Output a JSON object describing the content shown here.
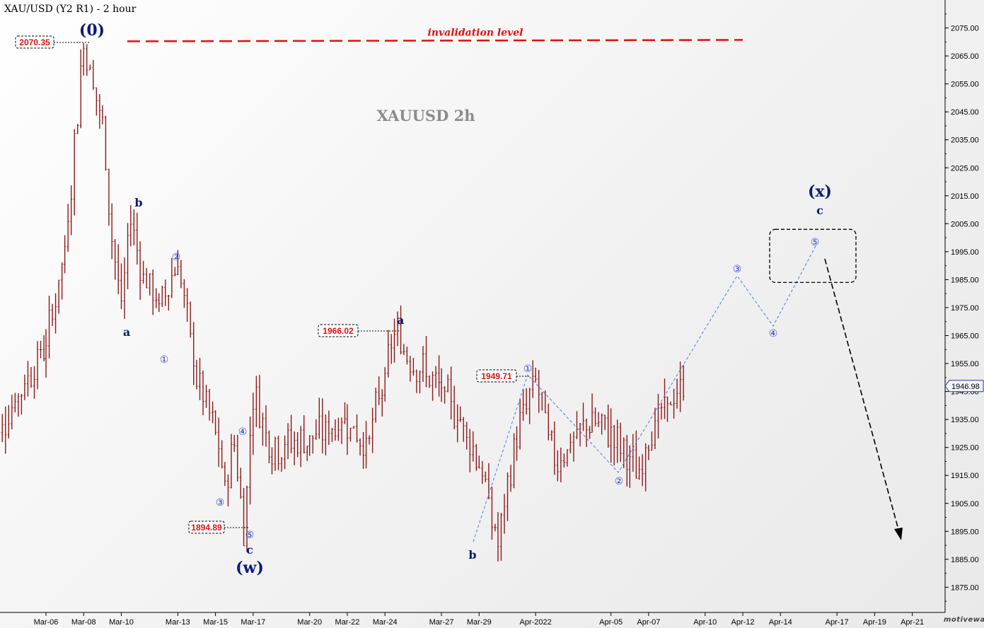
{
  "window": {
    "title": "XAU/USD (Y2 R1) - 2 hour",
    "watermark": "motivewave.com",
    "subtitle": "XAUUSD 2h",
    "invalidation_label": "invalidation level",
    "current_price_tag": "1946.98"
  },
  "colors": {
    "candle": "#8b1a1a",
    "wave_label": "#0b1a7a",
    "projection": "#4a7de0",
    "invalidation": "#e01010",
    "price_box_text": "#e01010",
    "axis": "#000000"
  },
  "chart_data": {
    "type": "ohlc_bar",
    "title": "XAU/USD (Y2 R1) - 2 hour",
    "ylim": [
      1866,
      2085
    ],
    "y_ticks": [
      "1875.00",
      "1885.00",
      "1895.00",
      "1905.00",
      "1915.00",
      "1925.00",
      "1935.00",
      "1945.00",
      "1955.00",
      "1965.00",
      "1975.00",
      "1985.00",
      "1995.00",
      "2005.00",
      "2015.00",
      "2025.00",
      "2035.00",
      "2045.00",
      "2055.00",
      "2065.00",
      "2075.00"
    ],
    "x_ticks": [
      "Mar-06",
      "Mar-08",
      "Mar-10",
      "Mar-13",
      "Mar-15",
      "Mar-17",
      "Mar-20",
      "Mar-22",
      "Mar-24",
      "Mar-27",
      "Mar-29",
      "Apr-2022",
      "Apr-05",
      "Apr-07",
      "Apr-10",
      "Apr-12",
      "Apr-14",
      "Apr-17",
      "Apr-19",
      "Apr-21"
    ],
    "price_path": [
      [
        "Mar-03",
        1925
      ],
      [
        "Mar-06",
        1962
      ],
      [
        "Mar-07",
        1995
      ],
      [
        "Mar-08",
        2070.35
      ],
      [
        "Mar-09",
        2040
      ],
      [
        "Mar-09",
        2000
      ],
      [
        "Mar-10",
        1975
      ],
      [
        "Mar-10",
        2008
      ],
      [
        "Mar-11",
        1990
      ],
      [
        "Mar-12",
        1975
      ],
      [
        "Mar-13",
        1992
      ],
      [
        "Mar-13",
        1970
      ],
      [
        "Mar-14",
        1950
      ],
      [
        "Mar-15",
        1930
      ],
      [
        "Mar-15",
        1910
      ],
      [
        "Mar-16",
        1928
      ],
      [
        "Mar-16",
        1894.89
      ],
      [
        "Mar-17",
        1945
      ],
      [
        "Mar-18",
        1925
      ],
      [
        "Mar-20",
        1928
      ],
      [
        "Mar-22",
        1935
      ],
      [
        "Mar-23",
        1925
      ],
      [
        "Mar-24",
        1950
      ],
      [
        "Mar-24",
        1966.02
      ],
      [
        "Mar-25",
        1960
      ],
      [
        "Mar-27",
        1945
      ],
      [
        "Mar-28",
        1935
      ],
      [
        "Mar-29",
        1920
      ],
      [
        "Mar-30",
        1890
      ],
      [
        "Mar-31",
        1930
      ],
      [
        "Apr-01",
        1949.71
      ],
      [
        "Apr-02",
        1920
      ],
      [
        "Apr-04",
        1935
      ],
      [
        "Apr-05",
        1930
      ],
      [
        "Apr-06",
        1920
      ],
      [
        "Apr-06",
        1915
      ],
      [
        "Apr-07",
        1930
      ],
      [
        "Apr-08",
        1940
      ],
      [
        "Apr-09",
        1946.98
      ]
    ],
    "price_boxes": [
      "2070.35",
      "1894.89",
      "1966.02",
      "1949.71"
    ],
    "wave_labels": [
      "(0)",
      "b",
      "a",
      "(w)",
      "c",
      "a",
      "b",
      "(x)",
      "c"
    ],
    "projection_points": [
      [
        "①",
        1949.71
      ],
      [
        "②",
        1915
      ],
      [
        "③",
        1986
      ],
      [
        "④",
        1968
      ],
      [
        "⑤",
        1998
      ]
    ],
    "invalidation_level": 2070.35,
    "target_box": [
      1984,
      2004
    ]
  }
}
